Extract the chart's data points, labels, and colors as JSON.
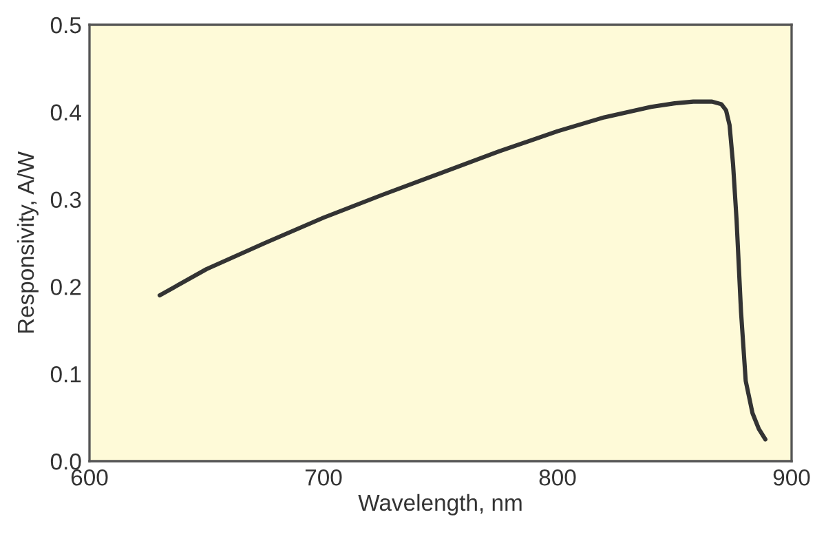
{
  "chart_data": {
    "type": "line",
    "xlabel": "Wavelength, nm",
    "ylabel": "Responsivity, A/W",
    "xlim": [
      600,
      900
    ],
    "xticks": [
      600,
      700,
      800,
      900
    ],
    "ylim": [
      0,
      0.5
    ],
    "yticks": [
      {
        "value": 0,
        "label": "0.0"
      },
      0.1,
      0.2,
      0.3,
      0.4,
      0.5
    ],
    "grid": false,
    "series": [
      {
        "color": "#333333",
        "x": [
          630,
          650,
          675,
          700,
          725,
          750,
          775,
          800,
          820,
          840,
          850,
          858,
          866,
          870,
          872,
          873.5,
          875,
          876.5,
          878.4,
          880.4,
          883.3,
          886,
          888.8
        ],
        "values": [
          0.19,
          0.22,
          0.25,
          0.279,
          0.305,
          0.33,
          0.355,
          0.378,
          0.394,
          0.406,
          0.41,
          0.412,
          0.412,
          0.409,
          0.402,
          0.385,
          0.34,
          0.276,
          0.171,
          0.092,
          0.055,
          0.037,
          0.025
        ]
      }
    ]
  }
}
